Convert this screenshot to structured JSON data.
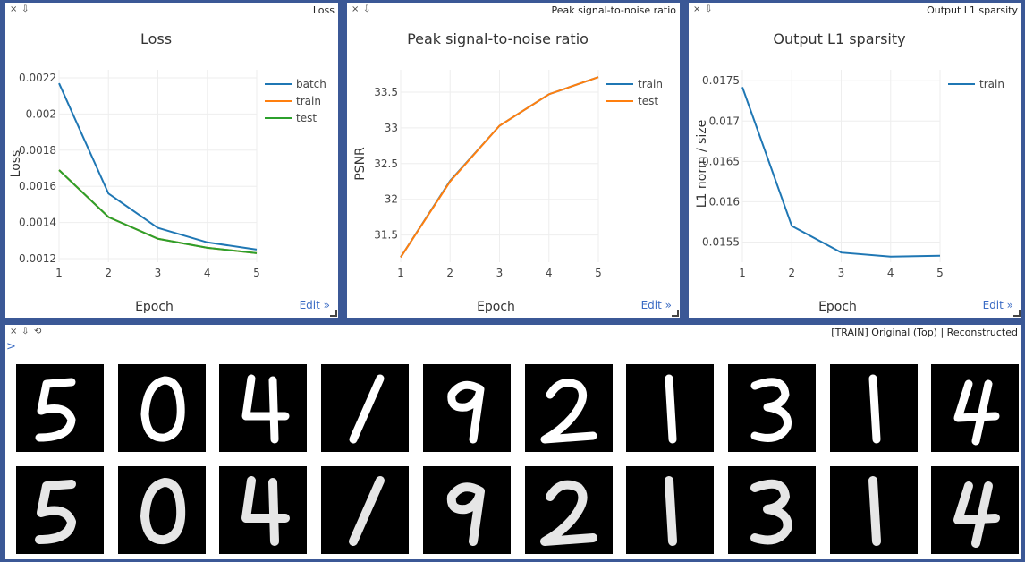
{
  "panes": [
    {
      "window_title": "Loss",
      "edit_label": "Edit »",
      "chart_data": {
        "type": "line",
        "title": "Loss",
        "xlabel": "Epoch",
        "ylabel": "Loss",
        "x": [
          1,
          2,
          3,
          4,
          5
        ],
        "xlim": [
          1,
          5
        ],
        "ylim": [
          0.00118,
          0.00222
        ],
        "xticks": [
          "1",
          "2",
          "3",
          "4",
          "5"
        ],
        "yticks": [
          {
            "v": 0.0012,
            "label": "0.0012"
          },
          {
            "v": 0.0014,
            "label": "0.0014"
          },
          {
            "v": 0.0016,
            "label": "0.0016"
          },
          {
            "v": 0.0018,
            "label": "0.0018"
          },
          {
            "v": 0.002,
            "label": "0.002"
          },
          {
            "v": 0.0022,
            "label": "0.0022"
          }
        ],
        "grid": true,
        "legend": "top-right",
        "series": [
          {
            "name": "batch",
            "color": "#1f77b4",
            "values": [
              0.00217,
              0.00156,
              0.00137,
              0.00129,
              0.00125
            ]
          },
          {
            "name": "train",
            "color": "#ff7f0e",
            "values": [
              0.00169,
              0.00143,
              0.00131,
              0.00126,
              0.00123
            ]
          },
          {
            "name": "test",
            "color": "#2ca02c",
            "values": [
              0.00169,
              0.00143,
              0.00131,
              0.00126,
              0.00123
            ]
          }
        ]
      }
    },
    {
      "window_title": "Peak signal-to-noise ratio",
      "edit_label": "Edit »",
      "chart_data": {
        "type": "line",
        "title": "Peak signal-to-noise ratio",
        "xlabel": "Epoch",
        "ylabel": "PSNR",
        "x": [
          1,
          2,
          3,
          4,
          5
        ],
        "xlim": [
          1,
          5
        ],
        "ylim": [
          31.12,
          33.75
        ],
        "xticks": [
          "1",
          "2",
          "3",
          "4",
          "5"
        ],
        "yticks": [
          {
            "v": 31.5,
            "label": "31.5"
          },
          {
            "v": 32,
            "label": "32"
          },
          {
            "v": 32.5,
            "label": "32.5"
          },
          {
            "v": 33,
            "label": "33"
          },
          {
            "v": 33.5,
            "label": "33.5"
          }
        ],
        "grid": true,
        "legend": "top-right",
        "series": [
          {
            "name": "train",
            "color": "#1f77b4",
            "values": [
              31.19,
              32.26,
              33.03,
              33.47,
              33.71
            ]
          },
          {
            "name": "test",
            "color": "#ff7f0e",
            "values": [
              31.19,
              32.25,
              33.03,
              33.47,
              33.71
            ]
          }
        ]
      }
    },
    {
      "window_title": "Output L1 sparsity",
      "edit_label": "Edit »",
      "chart_data": {
        "type": "line",
        "title": "Output L1 sparsity",
        "xlabel": "Epoch",
        "ylabel": "L1 norm / size",
        "x": [
          1,
          2,
          3,
          4,
          5
        ],
        "xlim": [
          1,
          5
        ],
        "ylim": [
          0.01525,
          0.01758
        ],
        "xticks": [
          "1",
          "2",
          "3",
          "4",
          "5"
        ],
        "yticks": [
          {
            "v": 0.0155,
            "label": "0.0155"
          },
          {
            "v": 0.016,
            "label": "0.016"
          },
          {
            "v": 0.0165,
            "label": "0.0165"
          },
          {
            "v": 0.017,
            "label": "0.017"
          },
          {
            "v": 0.0175,
            "label": "0.0175"
          }
        ],
        "grid": true,
        "legend": "top-right",
        "series": [
          {
            "name": "train",
            "color": "#1f77b4",
            "values": [
              0.01742,
              0.0157,
              0.01537,
              0.01532,
              0.01533
            ]
          }
        ]
      }
    }
  ],
  "image_pane": {
    "window_title": "[TRAIN] Original (Top) | Reconstructed",
    "prompt": ">",
    "rows": [
      {
        "name": "original",
        "digits": [
          "5",
          "0",
          "4",
          "1",
          "9",
          "2",
          "1",
          "3",
          "1",
          "4"
        ]
      },
      {
        "name": "reconstructed",
        "digits": [
          "5",
          "0",
          "4",
          "1",
          "9",
          "2",
          "1",
          "3",
          "1",
          "4"
        ]
      }
    ]
  },
  "window_controls": {
    "close": "×",
    "pin": "⇩",
    "reset": "⟲"
  }
}
